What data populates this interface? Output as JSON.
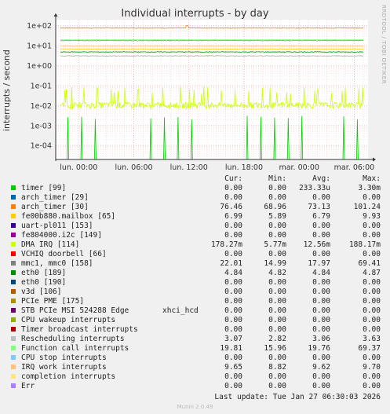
{
  "title": "Individual interrupts - by day",
  "side_label": "RRDTOOL / TOBI OETIKER",
  "chart_data": {
    "type": "line",
    "title": "Individual interrupts - by day",
    "ylabel": "interrupts / second",
    "yscale": "log",
    "ylim": [
      2e-05,
      200
    ],
    "y_ticks": [
      {
        "value": 100,
        "label": "1e+02"
      },
      {
        "value": 10,
        "label": "1e+01"
      },
      {
        "value": 1,
        "label": "1e+00"
      },
      {
        "value": 0.1,
        "label": "1e-01"
      },
      {
        "value": 0.01,
        "label": "1e-02"
      },
      {
        "value": 0.001,
        "label": "1e-03"
      },
      {
        "value": 0.0001,
        "label": "1e-04"
      }
    ],
    "x_ticks": [
      {
        "hour": 0,
        "label": "lun. 00:00"
      },
      {
        "hour": 6,
        "label": "lun. 06:00"
      },
      {
        "hour": 12,
        "label": "lun. 12:00"
      },
      {
        "hour": 18,
        "label": "lun. 18:00"
      },
      {
        "hour": 24,
        "label": "mar. 00:00"
      },
      {
        "hour": 30,
        "label": "mar. 06:00"
      }
    ],
    "x_range_hours": [
      -2.5,
      31.5
    ],
    "grid": true,
    "series": [
      {
        "name": "timer [99]",
        "color": "#00cc00",
        "pattern": "spikes",
        "base": 0.0,
        "peak": 0.0033
      },
      {
        "name": "arch_timer [30]",
        "color": "#ff8000",
        "pattern": "flat",
        "base": 76.46,
        "spike_hour": 11.8,
        "spike": 101.24
      },
      {
        "name": "fe00b880.mailbox [65]",
        "color": "#ffcc00",
        "pattern": "flat",
        "base": 6.79
      },
      {
        "name": "DMA IRQ [114]",
        "color": "#ccff00",
        "pattern": "noisy",
        "base": 0.0126,
        "peak": 0.188
      },
      {
        "name": "mmc1, mmc0 [158]",
        "color": "#888888",
        "pattern": "flat",
        "base": 17.97
      },
      {
        "name": "eth0 [189]",
        "color": "#008f00",
        "pattern": "flat",
        "base": 4.84
      },
      {
        "name": "Rescheduling interrupts",
        "color": "#aaaaaa",
        "pattern": "flat",
        "base": 3.06
      },
      {
        "name": "Function call interrupts",
        "color": "#80ff80",
        "pattern": "flat",
        "base": 19.76
      },
      {
        "name": "IRQ work interrupts",
        "color": "#ffc080",
        "pattern": "flat",
        "base": 9.62
      }
    ]
  },
  "legend": {
    "headers": {
      "cur": "Cur:",
      "min": "Min:",
      "avg": "Avg:",
      "max": "Max:"
    },
    "rows": [
      {
        "name": "timer [99]",
        "extra": "",
        "color": "#00cc00",
        "cur": "0.00",
        "min": "0.00",
        "avg": "233.33u",
        "max": "3.30m"
      },
      {
        "name": "arch_timer [29]",
        "extra": "",
        "color": "#0066b3",
        "cur": "0.00",
        "min": "0.00",
        "avg": "0.00",
        "max": "0.00"
      },
      {
        "name": "arch_timer [30]",
        "extra": "",
        "color": "#ff8000",
        "cur": "76.46",
        "min": "68.96",
        "avg": "73.13",
        "max": "101.24"
      },
      {
        "name": "fe00b880.mailbox [65]",
        "extra": "",
        "color": "#ffcc00",
        "cur": "6.99",
        "min": "5.89",
        "avg": "6.79",
        "max": "9.93"
      },
      {
        "name": "uart-pl011 [153]",
        "extra": "",
        "color": "#330099",
        "cur": "0.00",
        "min": "0.00",
        "avg": "0.00",
        "max": "0.00"
      },
      {
        "name": "fe804000.i2c [149]",
        "extra": "",
        "color": "#990099",
        "cur": "0.00",
        "min": "0.00",
        "avg": "0.00",
        "max": "0.00"
      },
      {
        "name": "DMA IRQ [114]",
        "extra": "",
        "color": "#ccff00",
        "cur": "178.27m",
        "min": "5.77m",
        "avg": "12.56m",
        "max": "188.17m"
      },
      {
        "name": "VCHIQ doorbell [66]",
        "extra": "",
        "color": "#ff0000",
        "cur": "0.00",
        "min": "0.00",
        "avg": "0.00",
        "max": "0.00"
      },
      {
        "name": "mmc1, mmc0 [158]",
        "extra": "",
        "color": "#808080",
        "cur": "22.01",
        "min": "14.99",
        "avg": "17.97",
        "max": "69.41"
      },
      {
        "name": "eth0 [189]",
        "extra": "",
        "color": "#008f00",
        "cur": "4.84",
        "min": "4.82",
        "avg": "4.84",
        "max": "4.87"
      },
      {
        "name": "eth0 [190]",
        "extra": "",
        "color": "#00487d",
        "cur": "0.00",
        "min": "0.00",
        "avg": "0.00",
        "max": "0.00"
      },
      {
        "name": "v3d [106]",
        "extra": "",
        "color": "#b35a00",
        "cur": "0.00",
        "min": "0.00",
        "avg": "0.00",
        "max": "0.00"
      },
      {
        "name": "PCIe PME [175]",
        "extra": "",
        "color": "#b38f00",
        "cur": "0.00",
        "min": "0.00",
        "avg": "0.00",
        "max": "0.00"
      },
      {
        "name": "STB PCIe MSI 524288 Edge",
        "extra": "xhci_hcd",
        "color": "#6b006b",
        "cur": "0.00",
        "min": "0.00",
        "avg": "0.00",
        "max": "0.00"
      },
      {
        "name": "CPU wakeup interrupts",
        "extra": "",
        "color": "#8fb300",
        "cur": "0.00",
        "min": "0.00",
        "avg": "0.00",
        "max": "0.00"
      },
      {
        "name": "Timer broadcast interrupts",
        "extra": "",
        "color": "#b30000",
        "cur": "0.00",
        "min": "0.00",
        "avg": "0.00",
        "max": "0.00"
      },
      {
        "name": "Rescheduling interrupts",
        "extra": "",
        "color": "#bebebe",
        "cur": "3.07",
        "min": "2.82",
        "avg": "3.06",
        "max": "3.63"
      },
      {
        "name": "Function call interrupts",
        "extra": "",
        "color": "#80ff80",
        "cur": "19.81",
        "min": "15.96",
        "avg": "19.76",
        "max": "69.37"
      },
      {
        "name": "CPU stop interrupts",
        "extra": "",
        "color": "#80c9ff",
        "cur": "0.00",
        "min": "0.00",
        "avg": "0.00",
        "max": "0.00"
      },
      {
        "name": "IRQ work interrupts",
        "extra": "",
        "color": "#ffc080",
        "cur": "9.65",
        "min": "8.82",
        "avg": "9.62",
        "max": "9.70"
      },
      {
        "name": "completion interrupts",
        "extra": "",
        "color": "#ffe680",
        "cur": "0.00",
        "min": "0.00",
        "avg": "0.00",
        "max": "0.00"
      },
      {
        "name": "Err",
        "extra": "",
        "color": "#aa80ff",
        "cur": "0.00",
        "min": "0.00",
        "avg": "0.00",
        "max": "0.00"
      }
    ]
  },
  "last_update": "Last update: Tue Jan 27 06:30:03 2026",
  "version": "Munin 2.0.49"
}
